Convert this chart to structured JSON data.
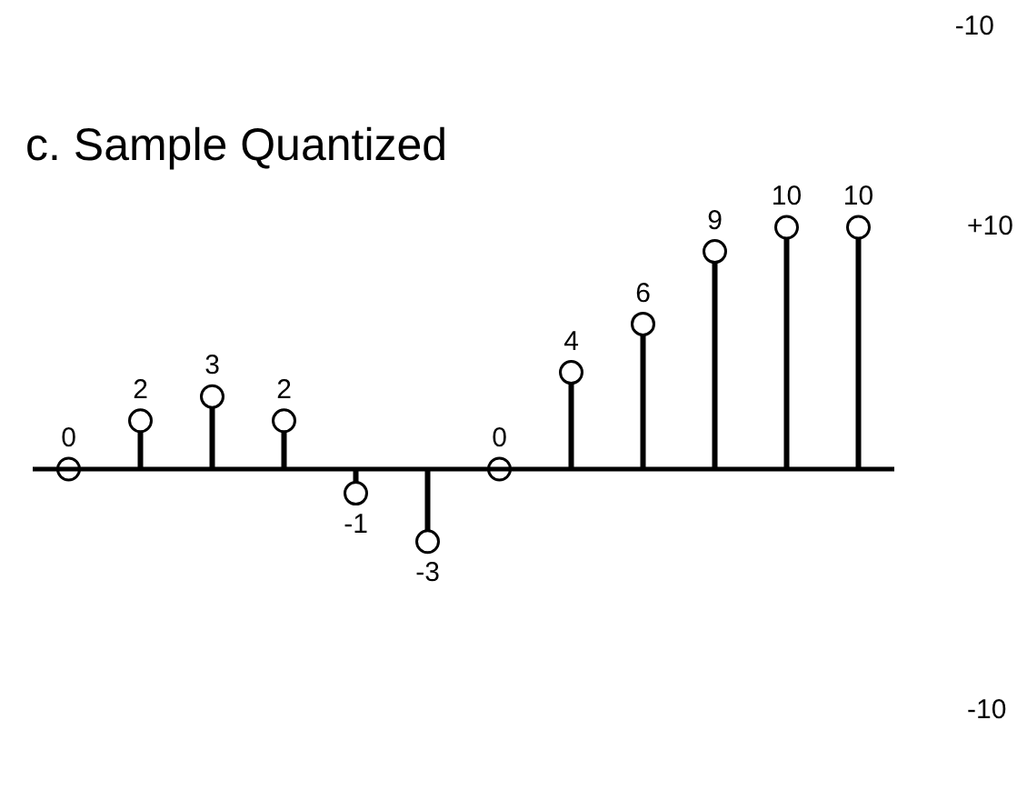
{
  "chart_data": {
    "type": "lollipop",
    "title": "c. Sample Quantized",
    "categories": [
      null,
      null,
      null,
      null,
      null,
      null,
      null,
      null,
      null,
      null,
      null,
      null
    ],
    "values": [
      0,
      2,
      3,
      2,
      -1,
      -3,
      0,
      4,
      6,
      9,
      10,
      10
    ],
    "color": "#000000",
    "marker": "circle",
    "data_labels": true,
    "grid": false,
    "legend": false,
    "tick_labels": "y",
    "ylim": [
      -10,
      10
    ],
    "yticks": [
      {
        "value": 10,
        "label": "+10"
      },
      -10
    ],
    "annotations": [
      "-10"
    ]
  }
}
